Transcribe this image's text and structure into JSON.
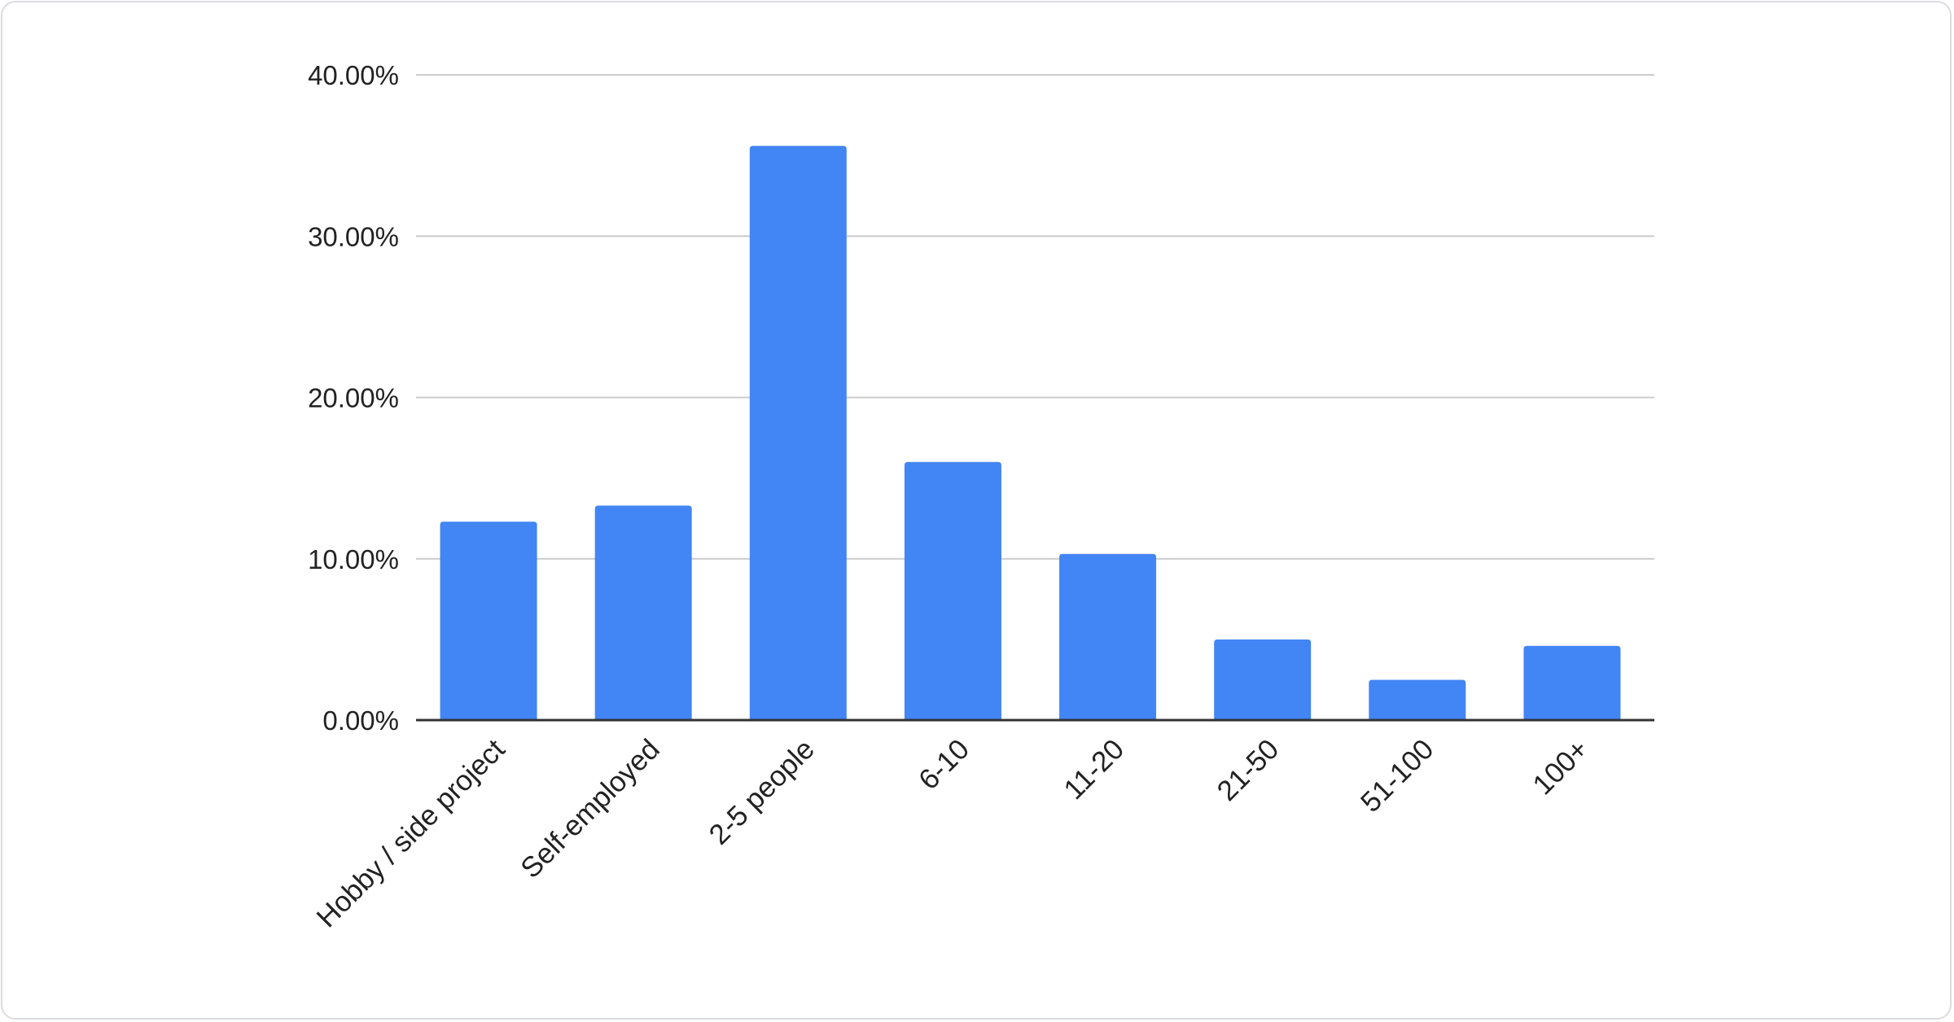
{
  "chart_data": {
    "type": "bar",
    "title": "",
    "xlabel": "",
    "ylabel": "",
    "categories": [
      "Hobby / side project",
      "Self-employed",
      "2-5 people",
      "6-10",
      "11-20",
      "21-50",
      "51-100",
      "100+"
    ],
    "values": [
      12.3,
      13.3,
      35.6,
      16.0,
      10.3,
      5.0,
      2.5,
      4.6
    ],
    "ylim": [
      0,
      40
    ],
    "yticks": [
      0,
      10,
      20,
      30,
      40
    ],
    "ytick_labels": [
      "0.00%",
      "10.00%",
      "20.00%",
      "30.00%",
      "40.00%"
    ],
    "grid": true,
    "legend": "none",
    "colors": {
      "bar": "#4285f4",
      "grid": "#cccccc",
      "axis": "#333333"
    }
  }
}
